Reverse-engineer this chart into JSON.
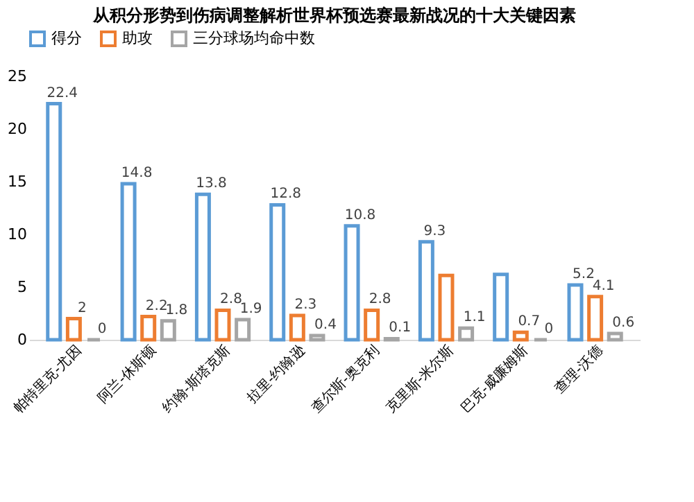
{
  "chart_data": {
    "type": "bar",
    "title": "从积分形势到伤病调整解析世界杯预选赛最新战况的十大关键因素",
    "categories": [
      "帕特里克-尤因",
      "阿兰-休斯顿",
      "约翰-斯塔克斯",
      "拉里-约翰逊",
      "查尔斯-奥克利",
      "克里斯-米尔斯",
      "巴克-威廉姆斯",
      "查理-沃德"
    ],
    "series": [
      {
        "name": "得分",
        "color": "#5b9bd5",
        "values": [
          22.4,
          14.8,
          13.8,
          12.8,
          10.8,
          9.3,
          6.2,
          5.2
        ],
        "value_labels": [
          "22.4",
          "14.8",
          "13.8",
          "12.8",
          "10.8",
          "9.3",
          null,
          "5.2"
        ]
      },
      {
        "name": "助攻",
        "color": "#ed7d31",
        "values": [
          2,
          2.2,
          2.8,
          2.3,
          2.8,
          6.1,
          0.7,
          4.1
        ],
        "value_labels": [
          "2",
          "2.2",
          "2.8",
          "2.3",
          "2.8",
          null,
          "0.7",
          "4.1"
        ]
      },
      {
        "name": "三分球场均命中数",
        "color": "#a5a5a5",
        "values": [
          0,
          1.8,
          1.9,
          0.4,
          0.1,
          1.1,
          0,
          0.6
        ],
        "value_labels": [
          "0",
          "1.8",
          "1.9",
          "0.4",
          "0.1",
          "1.1",
          "0",
          "0.6"
        ]
      }
    ],
    "ylim": [
      0,
      25
    ],
    "yticks": [
      0,
      5,
      10,
      15,
      20,
      25
    ],
    "grid": false,
    "legend": "top"
  }
}
